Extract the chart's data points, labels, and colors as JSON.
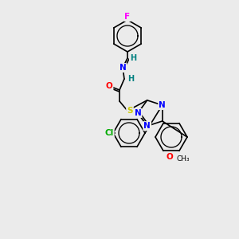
{
  "bg_color": "#ebebeb",
  "bond_color": "#000000",
  "atom_colors": {
    "F": "#ff00ff",
    "N": "#0000ff",
    "O": "#ff0000",
    "S": "#cccc00",
    "Cl": "#00aa00",
    "C": "#000000",
    "H": "#008080"
  },
  "font_size": 7.5,
  "line_width": 1.2
}
